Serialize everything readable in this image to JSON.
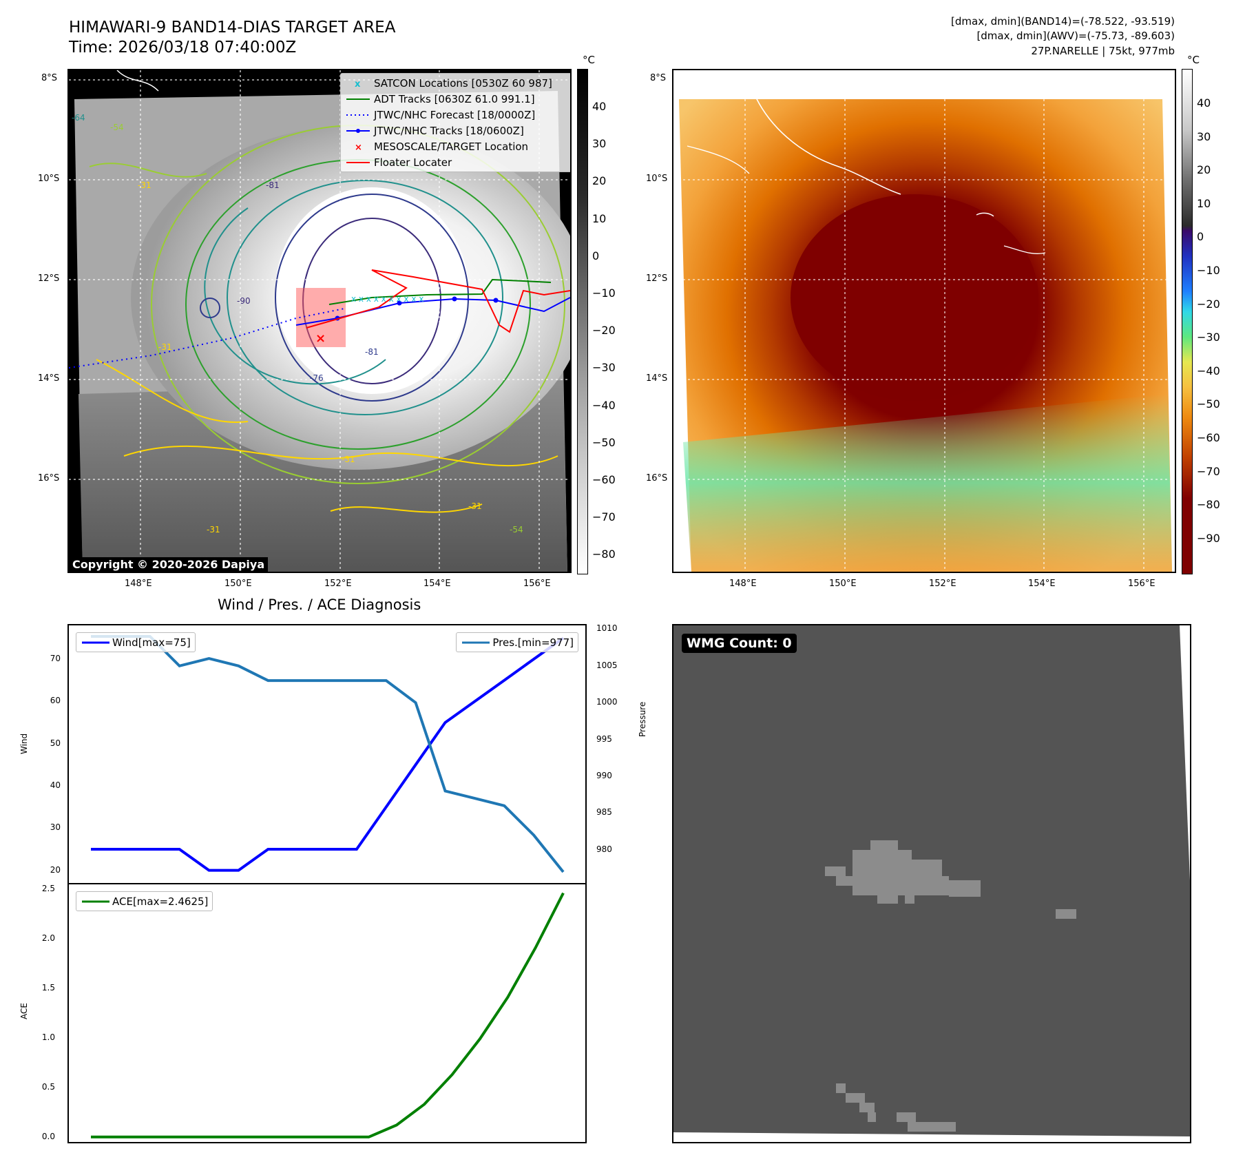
{
  "header": {
    "title_line1": "HIMAWARI-9 BAND14-DIAS TARGET AREA",
    "title_line2": "Time: 2026/03/18 07:40:00Z",
    "info_line1": "[dmax, dmin](BAND14)=(-78.522, -93.519)",
    "info_line2": "[dmax, dmin](AWV)=(-75.73, -89.603)",
    "info_line3": "27P.NARELLE | 75kt, 977mb"
  },
  "maps": {
    "lat_labels": [
      "8°S",
      "10°S",
      "12°S",
      "14°S",
      "16°S"
    ],
    "lon_labels": [
      "148°E",
      "150°E",
      "152°E",
      "154°E",
      "156°E"
    ],
    "contour_labels": [
      "-64",
      "-54",
      "-81",
      "-31",
      "-90",
      "-76",
      "-81",
      "-31",
      "-31",
      "-31",
      "-54",
      "-31"
    ],
    "legend": [
      {
        "label": "SATCON Locations [0530Z 60 987]",
        "color": "#17becf",
        "marker": "x"
      },
      {
        "label": "ADT Tracks [0630Z 61.0 991.1]",
        "color": "#008000",
        "marker": "line"
      },
      {
        "label": "JTWC/NHC Forecast [18/0000Z]",
        "color": "#0000ff",
        "marker": "dotted"
      },
      {
        "label": "JTWC/NHC Tracks [18/0600Z]",
        "color": "#0000ff",
        "marker": "line-dot"
      },
      {
        "label": "MESOSCALE/TARGET Location",
        "color": "#ff0000",
        "marker": "x"
      },
      {
        "label": "Floater Locater",
        "color": "#ff0000",
        "marker": "line"
      }
    ],
    "copyright": "Copyright © 2020-2026 Dapiya",
    "left_colorbar": {
      "unit": "°C",
      "ticks": [
        "40",
        "30",
        "20",
        "10",
        "0",
        "−10",
        "−20",
        "−30",
        "−40",
        "−50",
        "−60",
        "−70",
        "−80"
      ]
    },
    "right_colorbar": {
      "unit": "°C",
      "ticks": [
        "40",
        "30",
        "20",
        "10",
        "0",
        "−10",
        "−20",
        "−30",
        "−40",
        "−50",
        "−60",
        "−70",
        "−80",
        "−90"
      ]
    }
  },
  "chart_data": [
    {
      "type": "line",
      "title": "Wind / Pres. / ACE Diagnosis",
      "ylabel": "Wind",
      "ylabel_right": "Pressure",
      "ylim": [
        17,
        78
      ],
      "ylim_right": [
        975.5,
        1010.5
      ],
      "y_ticks": [
        "70",
        "60",
        "50",
        "40",
        "30",
        "20"
      ],
      "y_ticks_right": [
        "1010",
        "1005",
        "1000",
        "995",
        "990",
        "985",
        "980"
      ],
      "series": [
        {
          "name": "Wind[max=75]",
          "color": "#0000ff",
          "values": [
            25,
            25,
            25,
            25,
            20,
            20,
            25,
            25,
            25,
            25,
            35,
            45,
            55,
            60,
            65,
            70,
            75
          ]
        },
        {
          "name": "Pres.[min=977]",
          "color": "#1f77b4",
          "values": [
            1009,
            1009,
            1009,
            1005,
            1006,
            1005,
            1003,
            1003,
            1003,
            1003,
            1003,
            1000,
            988,
            987,
            986,
            982,
            977
          ]
        }
      ]
    },
    {
      "type": "line",
      "ylabel": "ACE",
      "ylim": [
        -0.05,
        2.55
      ],
      "y_ticks": [
        "2.5",
        "2.0",
        "1.5",
        "1.0",
        "0.5",
        "0.0"
      ],
      "series": [
        {
          "name": "ACE[max=2.4625]",
          "color": "#008000",
          "values": [
            0,
            0,
            0,
            0,
            0,
            0,
            0,
            0,
            0,
            0,
            0,
            0.12,
            0.33,
            0.63,
            0.99,
            1.41,
            1.91,
            2.4625
          ]
        }
      ]
    }
  ],
  "wmg": {
    "label": "WMG Count: 0"
  }
}
